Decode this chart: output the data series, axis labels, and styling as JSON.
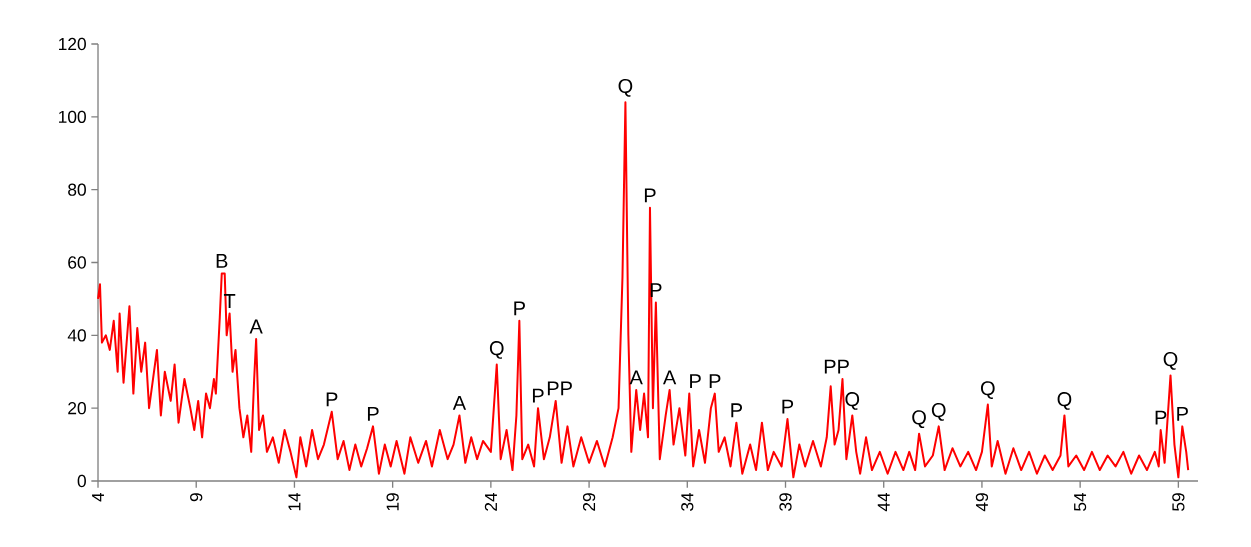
{
  "chart_data": {
    "type": "line",
    "x": [
      4.0,
      4.1,
      4.2,
      4.4,
      4.6,
      4.8,
      5.0,
      5.1,
      5.3,
      5.6,
      5.8,
      6.0,
      6.2,
      6.4,
      6.6,
      6.8,
      7.0,
      7.2,
      7.4,
      7.7,
      7.9,
      8.1,
      8.4,
      8.7,
      8.9,
      9.1,
      9.3,
      9.5,
      9.7,
      9.9,
      10.0,
      10.2,
      10.3,
      10.45,
      10.55,
      10.7,
      10.85,
      11.0,
      11.2,
      11.4,
      11.6,
      11.8,
      11.95,
      12.05,
      12.2,
      12.4,
      12.6,
      12.9,
      13.2,
      13.5,
      13.8,
      14.1,
      14.3,
      14.6,
      14.9,
      15.2,
      15.5,
      15.9,
      16.2,
      16.5,
      16.8,
      17.1,
      17.4,
      17.7,
      18.0,
      18.3,
      18.6,
      18.9,
      19.2,
      19.6,
      19.9,
      20.3,
      20.7,
      21.0,
      21.4,
      21.8,
      22.1,
      22.4,
      22.7,
      23.0,
      23.3,
      23.6,
      24.0,
      24.3,
      24.5,
      24.8,
      25.1,
      25.3,
      25.45,
      25.6,
      25.9,
      26.2,
      26.4,
      26.7,
      27.0,
      27.3,
      27.6,
      27.9,
      28.2,
      28.6,
      29.0,
      29.4,
      29.8,
      30.2,
      30.5,
      30.7,
      30.85,
      31.0,
      31.15,
      31.4,
      31.6,
      31.8,
      32.0,
      32.1,
      32.25,
      32.4,
      32.6,
      32.9,
      33.1,
      33.3,
      33.6,
      33.9,
      34.1,
      34.3,
      34.6,
      34.9,
      35.2,
      35.4,
      35.6,
      35.9,
      36.2,
      36.5,
      36.8,
      37.2,
      37.5,
      37.8,
      38.1,
      38.4,
      38.8,
      39.1,
      39.4,
      39.7,
      40.0,
      40.4,
      40.8,
      41.1,
      41.3,
      41.5,
      41.7,
      41.9,
      42.1,
      42.4,
      42.6,
      42.8,
      43.1,
      43.4,
      43.8,
      44.2,
      44.6,
      45.0,
      45.3,
      45.6,
      45.8,
      46.1,
      46.5,
      46.8,
      47.1,
      47.5,
      47.9,
      48.3,
      48.7,
      49.0,
      49.3,
      49.5,
      49.8,
      50.2,
      50.6,
      51.0,
      51.4,
      51.8,
      52.2,
      52.6,
      53.0,
      53.2,
      53.4,
      53.8,
      54.2,
      54.6,
      55.0,
      55.4,
      55.8,
      56.2,
      56.6,
      57.0,
      57.4,
      57.8,
      58.0,
      58.1,
      58.3,
      58.6,
      58.8,
      59.0,
      59.2,
      59.4,
      59.5
    ],
    "values": [
      50,
      54,
      38,
      40,
      36,
      44,
      30,
      46,
      27,
      48,
      24,
      42,
      30,
      38,
      20,
      28,
      36,
      18,
      30,
      22,
      32,
      16,
      28,
      20,
      14,
      22,
      12,
      24,
      20,
      28,
      24,
      45,
      57,
      57,
      40,
      46,
      30,
      36,
      20,
      12,
      18,
      8,
      28,
      39,
      14,
      18,
      8,
      12,
      5,
      14,
      8,
      1,
      12,
      4,
      14,
      6,
      10,
      19,
      6,
      11,
      3,
      10,
      4,
      9,
      15,
      2,
      10,
      4,
      11,
      2,
      12,
      5,
      11,
      4,
      14,
      6,
      10,
      18,
      5,
      12,
      6,
      11,
      8,
      32,
      6,
      14,
      3,
      18,
      44,
      6,
      10,
      4,
      20,
      6,
      12,
      22,
      5,
      15,
      4,
      12,
      5,
      11,
      4,
      12,
      20,
      56,
      104,
      40,
      8,
      25,
      14,
      24,
      12,
      75,
      20,
      49,
      6,
      18,
      25,
      10,
      20,
      7,
      24,
      4,
      14,
      5,
      20,
      24,
      8,
      12,
      4,
      16,
      2,
      10,
      3,
      16,
      3,
      8,
      4,
      17,
      1,
      10,
      4,
      11,
      4,
      12,
      26,
      10,
      14,
      28,
      6,
      18,
      8,
      2,
      12,
      3,
      8,
      2,
      8,
      3,
      8,
      3,
      13,
      4,
      7,
      15,
      3,
      9,
      4,
      8,
      3,
      8,
      21,
      4,
      11,
      2,
      9,
      3,
      8,
      2,
      7,
      3,
      7,
      18,
      4,
      7,
      3,
      8,
      3,
      7,
      4,
      8,
      2,
      7,
      3,
      8,
      4,
      14,
      5,
      29,
      10,
      1,
      15,
      8,
      3
    ],
    "color": "#ff0000",
    "xlim": [
      4,
      60
    ],
    "ylim": [
      0,
      120
    ],
    "xticks": [
      4,
      9,
      14,
      19,
      24,
      29,
      34,
      39,
      44,
      49,
      54,
      59
    ],
    "yticks": [
      0,
      20,
      40,
      60,
      80,
      100,
      120
    ],
    "annotations": [
      {
        "text": "B",
        "x": 10.3,
        "y": 57
      },
      {
        "text": "T",
        "x": 10.7,
        "y": 46
      },
      {
        "text": "A",
        "x": 12.05,
        "y": 39
      },
      {
        "text": "P",
        "x": 15.9,
        "y": 19
      },
      {
        "text": "P",
        "x": 18.0,
        "y": 15
      },
      {
        "text": "A",
        "x": 22.4,
        "y": 18
      },
      {
        "text": "Q",
        "x": 24.3,
        "y": 32
      },
      {
        "text": "P",
        "x": 25.45,
        "y": 44
      },
      {
        "text": "P",
        "x": 26.4,
        "y": 20
      },
      {
        "text": "PP",
        "x": 27.5,
        "y": 22
      },
      {
        "text": "Q",
        "x": 30.85,
        "y": 104
      },
      {
        "text": "A",
        "x": 31.4,
        "y": 25
      },
      {
        "text": "P",
        "x": 32.1,
        "y": 75
      },
      {
        "text": "P",
        "x": 32.4,
        "y": 49
      },
      {
        "text": "A",
        "x": 33.1,
        "y": 25
      },
      {
        "text": "P",
        "x": 34.4,
        "y": 24
      },
      {
        "text": "P",
        "x": 35.4,
        "y": 24
      },
      {
        "text": "P",
        "x": 36.5,
        "y": 16
      },
      {
        "text": "P",
        "x": 39.1,
        "y": 17
      },
      {
        "text": "PP",
        "x": 41.6,
        "y": 28
      },
      {
        "text": "Q",
        "x": 42.4,
        "y": 18
      },
      {
        "text": "Q",
        "x": 45.8,
        "y": 13
      },
      {
        "text": "Q",
        "x": 46.8,
        "y": 15
      },
      {
        "text": "Q",
        "x": 49.3,
        "y": 21
      },
      {
        "text": "Q",
        "x": 53.2,
        "y": 18
      },
      {
        "text": "P",
        "x": 58.1,
        "y": 14
      },
      {
        "text": "Q",
        "x": 58.6,
        "y": 29
      },
      {
        "text": "P",
        "x": 59.2,
        "y": 15
      }
    ]
  }
}
